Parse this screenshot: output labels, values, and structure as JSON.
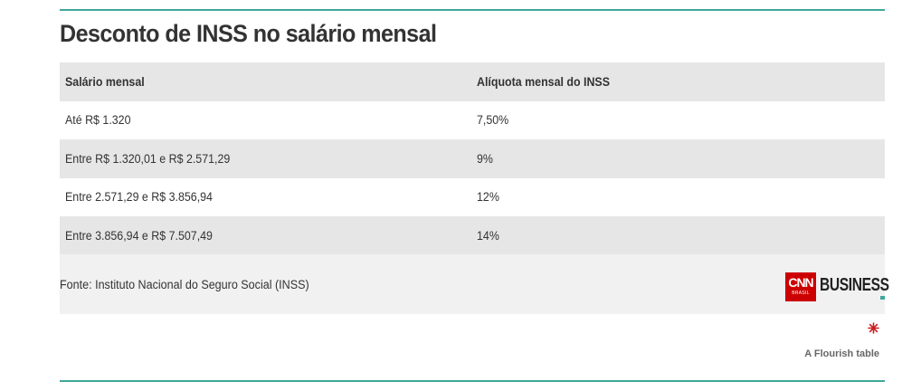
{
  "title": "Desconto de INSS no salário mensal",
  "table": {
    "headers": [
      "Salário mensal",
      "Alíquota mensal do INSS"
    ],
    "rows": [
      [
        "Até R$ 1.320",
        "7,50%"
      ],
      [
        "Entre R$ 1.320,01 e R$ 2.571,29",
        "9%"
      ],
      [
        "Entre 2.571,29 e R$ 3.856,94",
        "12%"
      ],
      [
        "Entre 3.856,94 e R$ 7.507,49",
        "14%"
      ]
    ]
  },
  "footer": {
    "source": "Fonte: Instituto Nacional do Seguro Social (INSS)",
    "logo": {
      "brand": "CNN",
      "sub": "BRASIL",
      "name": "BUSINESS"
    }
  },
  "credit": {
    "icon": "flourish-logo-icon",
    "text": "A Flourish table"
  },
  "colors": {
    "accent_rule": "#3fa79a",
    "row_shade": "#e6e6e6",
    "footer_bg": "#f1f1f1",
    "logo_red": "#cc0000",
    "flourish_red": "#cc1f1f"
  }
}
